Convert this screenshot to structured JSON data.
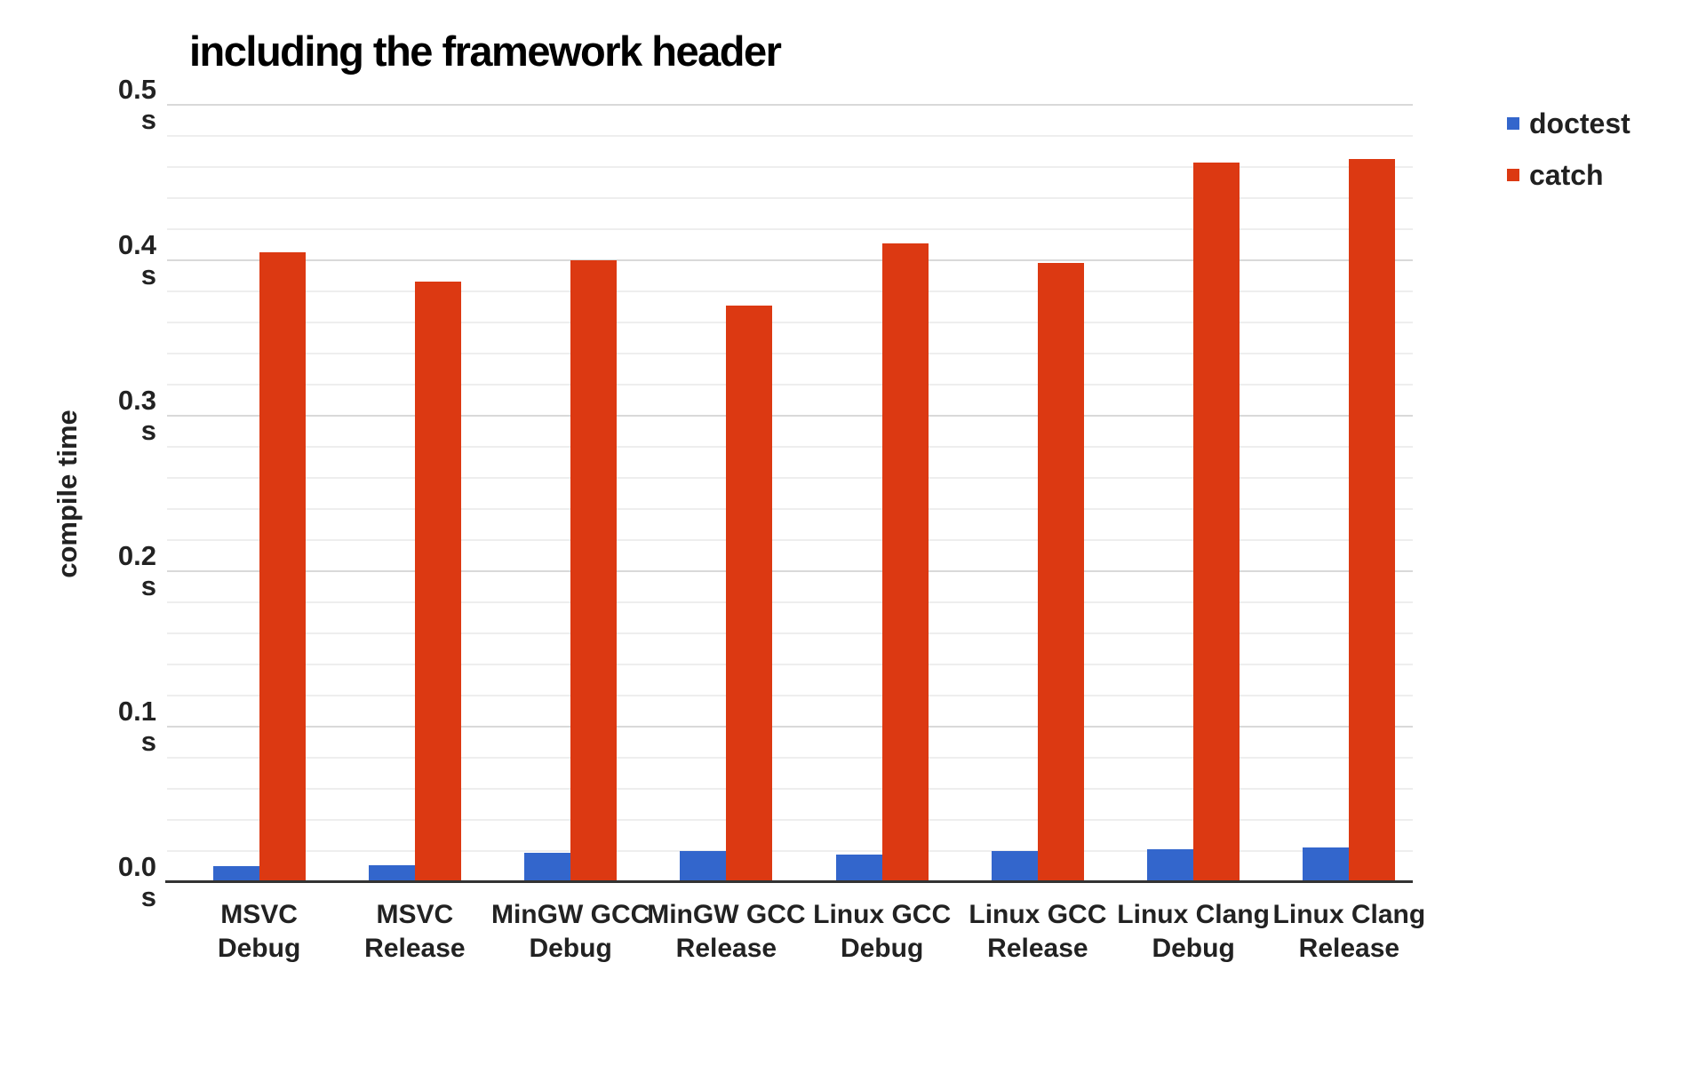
{
  "chart_data": {
    "type": "bar",
    "title": "including the framework header",
    "ylabel": "compile time",
    "y_unit": "s",
    "ylim": [
      0,
      0.5
    ],
    "y_major_step": 0.1,
    "y_minor_step": 0.02,
    "y_ticks": [
      "0.5",
      "0.4",
      "0.3",
      "0.2",
      "0.1",
      "0.0"
    ],
    "grid": true,
    "legend_position": "top-right",
    "categories": [
      {
        "full": "MSVC Debug",
        "line1": "MSVC",
        "line2": "Debug"
      },
      {
        "full": "MSVC Release",
        "line1": "MSVC",
        "line2": "Release"
      },
      {
        "full": "MinGW GCC Debug",
        "line1": "MinGW GCC",
        "line2": "Debug"
      },
      {
        "full": "MinGW GCC Release",
        "line1": "MinGW GCC",
        "line2": "Release"
      },
      {
        "full": "Linux GCC Debug",
        "line1": "Linux GCC",
        "line2": "Debug"
      },
      {
        "full": "Linux GCC Release",
        "line1": "Linux GCC",
        "line2": "Release"
      },
      {
        "full": "Linux Clang Debug",
        "line1": "Linux Clang",
        "line2": "Debug"
      },
      {
        "full": "Linux Clang Release",
        "line1": "Linux Clang",
        "line2": "Release"
      }
    ],
    "series": [
      {
        "name": "doctest",
        "color": "#3366cc",
        "values": [
          0.01,
          0.011,
          0.019,
          0.02,
          0.018,
          0.02,
          0.021,
          0.022
        ]
      },
      {
        "name": "catch",
        "color": "#dc3912",
        "values": [
          0.405,
          0.386,
          0.4,
          0.371,
          0.411,
          0.398,
          0.463,
          0.465
        ]
      }
    ]
  },
  "colors": {
    "background": "#ffffff",
    "title_text": "#000000",
    "axis_text": "#222222",
    "major_grid": "#d9d9d9",
    "minor_grid": "#eeeeee",
    "baseline": "#333333"
  }
}
